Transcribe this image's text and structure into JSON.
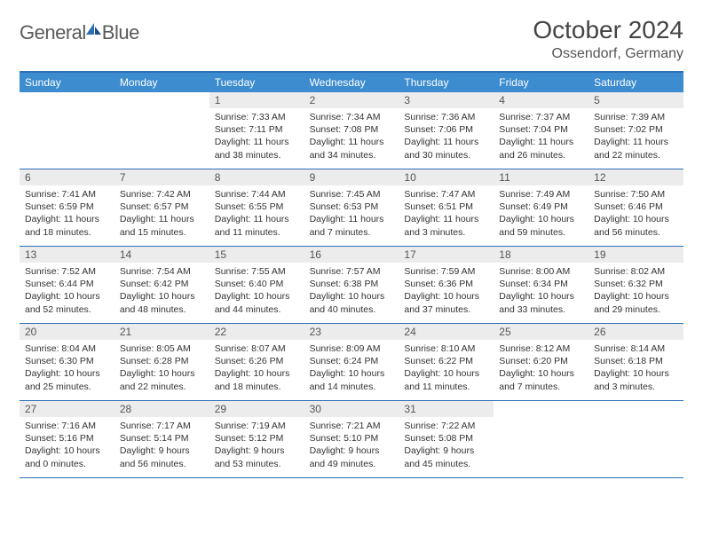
{
  "logo": {
    "text_general": "General",
    "text_blue": "Blue"
  },
  "header": {
    "title": "October 2024",
    "subtitle": "Ossendorf, Germany"
  },
  "colors": {
    "header_bar": "#3c8ccf",
    "accent_line": "#2c6fb5",
    "daynum_bg": "#ececec",
    "text": "#333333"
  },
  "day_names": [
    "Sunday",
    "Monday",
    "Tuesday",
    "Wednesday",
    "Thursday",
    "Friday",
    "Saturday"
  ],
  "weeks": [
    [
      null,
      null,
      {
        "n": "1",
        "sr": "7:33 AM",
        "ss": "7:11 PM",
        "dl": "11 hours and 38 minutes."
      },
      {
        "n": "2",
        "sr": "7:34 AM",
        "ss": "7:08 PM",
        "dl": "11 hours and 34 minutes."
      },
      {
        "n": "3",
        "sr": "7:36 AM",
        "ss": "7:06 PM",
        "dl": "11 hours and 30 minutes."
      },
      {
        "n": "4",
        "sr": "7:37 AM",
        "ss": "7:04 PM",
        "dl": "11 hours and 26 minutes."
      },
      {
        "n": "5",
        "sr": "7:39 AM",
        "ss": "7:02 PM",
        "dl": "11 hours and 22 minutes."
      }
    ],
    [
      {
        "n": "6",
        "sr": "7:41 AM",
        "ss": "6:59 PM",
        "dl": "11 hours and 18 minutes."
      },
      {
        "n": "7",
        "sr": "7:42 AM",
        "ss": "6:57 PM",
        "dl": "11 hours and 15 minutes."
      },
      {
        "n": "8",
        "sr": "7:44 AM",
        "ss": "6:55 PM",
        "dl": "11 hours and 11 minutes."
      },
      {
        "n": "9",
        "sr": "7:45 AM",
        "ss": "6:53 PM",
        "dl": "11 hours and 7 minutes."
      },
      {
        "n": "10",
        "sr": "7:47 AM",
        "ss": "6:51 PM",
        "dl": "11 hours and 3 minutes."
      },
      {
        "n": "11",
        "sr": "7:49 AM",
        "ss": "6:49 PM",
        "dl": "10 hours and 59 minutes."
      },
      {
        "n": "12",
        "sr": "7:50 AM",
        "ss": "6:46 PM",
        "dl": "10 hours and 56 minutes."
      }
    ],
    [
      {
        "n": "13",
        "sr": "7:52 AM",
        "ss": "6:44 PM",
        "dl": "10 hours and 52 minutes."
      },
      {
        "n": "14",
        "sr": "7:54 AM",
        "ss": "6:42 PM",
        "dl": "10 hours and 48 minutes."
      },
      {
        "n": "15",
        "sr": "7:55 AM",
        "ss": "6:40 PM",
        "dl": "10 hours and 44 minutes."
      },
      {
        "n": "16",
        "sr": "7:57 AM",
        "ss": "6:38 PM",
        "dl": "10 hours and 40 minutes."
      },
      {
        "n": "17",
        "sr": "7:59 AM",
        "ss": "6:36 PM",
        "dl": "10 hours and 37 minutes."
      },
      {
        "n": "18",
        "sr": "8:00 AM",
        "ss": "6:34 PM",
        "dl": "10 hours and 33 minutes."
      },
      {
        "n": "19",
        "sr": "8:02 AM",
        "ss": "6:32 PM",
        "dl": "10 hours and 29 minutes."
      }
    ],
    [
      {
        "n": "20",
        "sr": "8:04 AM",
        "ss": "6:30 PM",
        "dl": "10 hours and 25 minutes."
      },
      {
        "n": "21",
        "sr": "8:05 AM",
        "ss": "6:28 PM",
        "dl": "10 hours and 22 minutes."
      },
      {
        "n": "22",
        "sr": "8:07 AM",
        "ss": "6:26 PM",
        "dl": "10 hours and 18 minutes."
      },
      {
        "n": "23",
        "sr": "8:09 AM",
        "ss": "6:24 PM",
        "dl": "10 hours and 14 minutes."
      },
      {
        "n": "24",
        "sr": "8:10 AM",
        "ss": "6:22 PM",
        "dl": "10 hours and 11 minutes."
      },
      {
        "n": "25",
        "sr": "8:12 AM",
        "ss": "6:20 PM",
        "dl": "10 hours and 7 minutes."
      },
      {
        "n": "26",
        "sr": "8:14 AM",
        "ss": "6:18 PM",
        "dl": "10 hours and 3 minutes."
      }
    ],
    [
      {
        "n": "27",
        "sr": "7:16 AM",
        "ss": "5:16 PM",
        "dl": "10 hours and 0 minutes."
      },
      {
        "n": "28",
        "sr": "7:17 AM",
        "ss": "5:14 PM",
        "dl": "9 hours and 56 minutes."
      },
      {
        "n": "29",
        "sr": "7:19 AM",
        "ss": "5:12 PM",
        "dl": "9 hours and 53 minutes."
      },
      {
        "n": "30",
        "sr": "7:21 AM",
        "ss": "5:10 PM",
        "dl": "9 hours and 49 minutes."
      },
      {
        "n": "31",
        "sr": "7:22 AM",
        "ss": "5:08 PM",
        "dl": "9 hours and 45 minutes."
      },
      null,
      null
    ]
  ],
  "labels": {
    "sunrise": "Sunrise:",
    "sunset": "Sunset:",
    "daylight": "Daylight:"
  }
}
